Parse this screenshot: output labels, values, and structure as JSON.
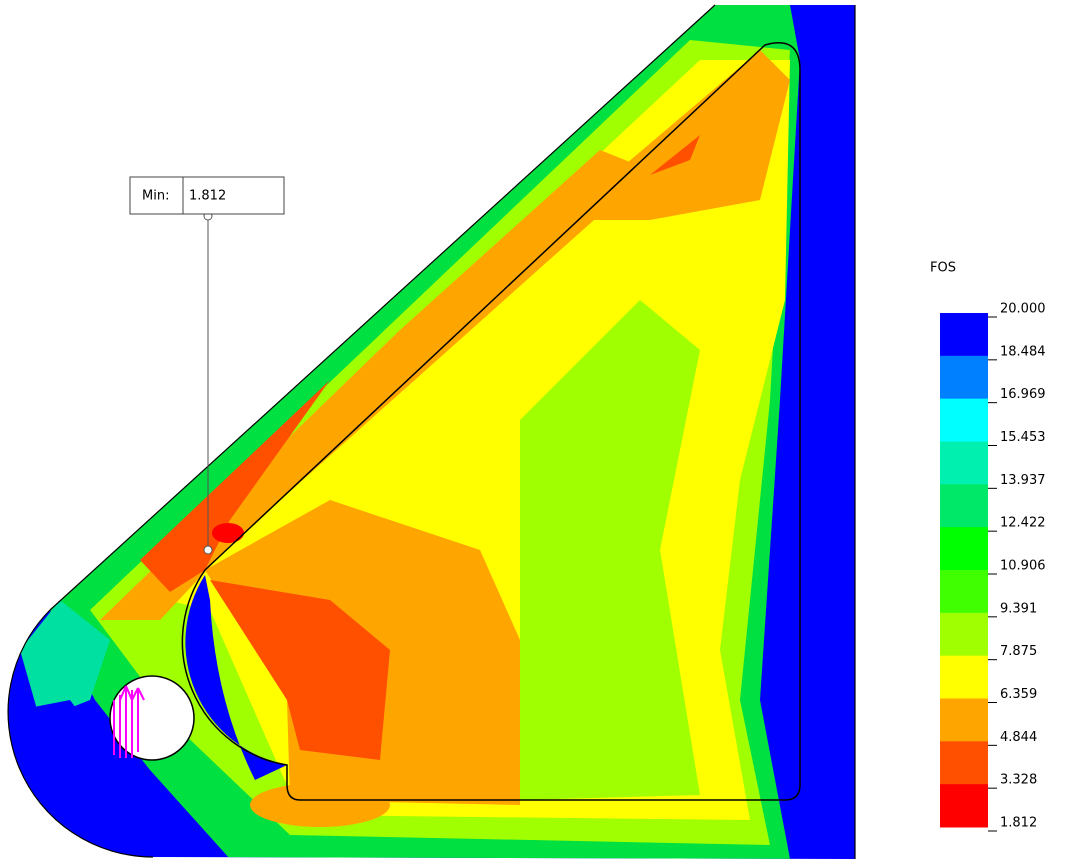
{
  "annotation": {
    "label": "Min:",
    "value": "1.812"
  },
  "legend": {
    "title": "FOS",
    "labels": [
      "20.000",
      "18.484",
      "16.969",
      "15.453",
      "13.937",
      "12.422",
      "10.906",
      "9.391",
      "7.875",
      "6.359",
      "4.844",
      "3.328",
      "1.812"
    ]
  }
}
